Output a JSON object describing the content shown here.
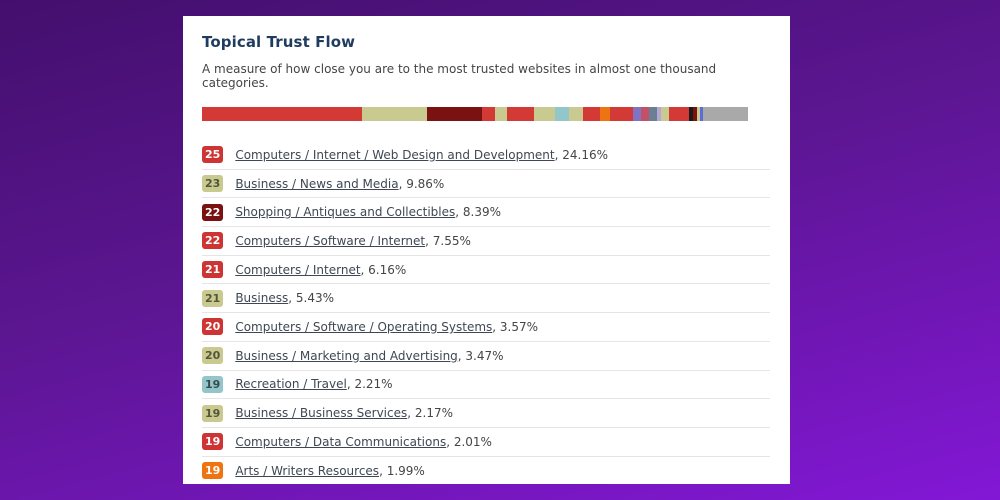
{
  "card": {
    "title": "Topical Trust Flow",
    "subtitle": "A measure of how close you are to the most trusted websites in almost one thousand categories."
  },
  "colors": {
    "background_top": "#430f6d",
    "background_bottom": "#8317d6",
    "card_background": "#ffffff",
    "title_text": "#1f3c5f",
    "body_text": "#454545",
    "link_text": "#3e4753",
    "divider": "#e5e5e5",
    "badge_red": "#ce3434",
    "badge_olive": "#c8ca90",
    "badge_maroon": "#7a1212",
    "badge_teal": "#93c6ca",
    "badge_orange": "#ee7411",
    "bar_other_gray": "#a9a9a9"
  },
  "chart_data": {
    "type": "bar",
    "variant": "single-stacked-horizontal-bar",
    "title": "Topical Trust Flow category distribution",
    "unit": "%",
    "legend": "none",
    "categories": [
      "Computers / Internet / Web Design and Development",
      "Business / News and Media",
      "Shopping / Antiques and Collectibles",
      "Computers / Software / Internet",
      "Computers / Internet",
      "Business",
      "Computers / Software / Operating Systems",
      "Business / Marketing and Advertising",
      "Recreation / Travel",
      "Business / Business Services",
      "Computers / Data Communications",
      "Arts / Writers Resources"
    ],
    "values": [
      24.16,
      9.86,
      8.39,
      7.55,
      6.16,
      5.43,
      3.57,
      3.47,
      2.21,
      2.17,
      2.01,
      1.99
    ],
    "segments": [
      {
        "color": "#d43a35",
        "width_pct": 29.3
      },
      {
        "color": "#c8ca90",
        "width_pct": 11.9
      },
      {
        "color": "#7a1212",
        "width_pct": 10.1
      },
      {
        "color": "#d43a35",
        "width_pct": 2.4
      },
      {
        "color": "#c8ca90",
        "width_pct": 2.2
      },
      {
        "color": "#d43a35",
        "width_pct": 4.9
      },
      {
        "color": "#c8ca90",
        "width_pct": 3.8
      },
      {
        "color": "#93c6ca",
        "width_pct": 2.6
      },
      {
        "color": "#c8ca90",
        "width_pct": 2.6
      },
      {
        "color": "#d43a35",
        "width_pct": 3.1
      },
      {
        "color": "#ee7411",
        "width_pct": 1.8
      },
      {
        "color": "#d43a35",
        "width_pct": 4.2
      },
      {
        "color": "#8272c4",
        "width_pct": 1.5
      },
      {
        "color": "#c15069",
        "width_pct": 1.5
      },
      {
        "color": "#6a7f93",
        "width_pct": 1.5
      },
      {
        "color": "#b5a6d6",
        "width_pct": 0.7
      },
      {
        "color": "#c8ca90",
        "width_pct": 1.5
      },
      {
        "color": "#d43a35",
        "width_pct": 3.7
      },
      {
        "color": "#1a1a1a",
        "width_pct": 0.6
      },
      {
        "color": "#7a1212",
        "width_pct": 0.7
      },
      {
        "color": "#c8ca90",
        "width_pct": 0.6
      },
      {
        "color": "#5b6ed1",
        "width_pct": 0.6
      },
      {
        "color": "#a9a9a9",
        "width_pct": 8.2
      }
    ]
  },
  "topics": [
    {
      "score": "25",
      "badge_color": "#ce3434",
      "badge_text_color": "#ffffff",
      "label": "Computers / Internet / Web Design and Development",
      "percent": "24.16%"
    },
    {
      "score": "23",
      "badge_color": "#c8ca90",
      "badge_text_color": "#55553a",
      "label": "Business / News and Media",
      "percent": "9.86%"
    },
    {
      "score": "22",
      "badge_color": "#7a1212",
      "badge_text_color": "#ffffff",
      "label": "Shopping / Antiques and Collectibles",
      "percent": "8.39%"
    },
    {
      "score": "22",
      "badge_color": "#ce3434",
      "badge_text_color": "#ffffff",
      "label": "Computers / Software / Internet",
      "percent": "7.55%"
    },
    {
      "score": "21",
      "badge_color": "#ce3434",
      "badge_text_color": "#ffffff",
      "label": "Computers / Internet",
      "percent": "6.16%"
    },
    {
      "score": "21",
      "badge_color": "#c8ca90",
      "badge_text_color": "#55553a",
      "label": "Business",
      "percent": "5.43%"
    },
    {
      "score": "20",
      "badge_color": "#ce3434",
      "badge_text_color": "#ffffff",
      "label": "Computers / Software / Operating Systems",
      "percent": "3.57%"
    },
    {
      "score": "20",
      "badge_color": "#c8ca90",
      "badge_text_color": "#55553a",
      "label": "Business / Marketing and Advertising",
      "percent": "3.47%"
    },
    {
      "score": "19",
      "badge_color": "#93c6ca",
      "badge_text_color": "#3d4a4c",
      "label": "Recreation / Travel",
      "percent": "2.21%"
    },
    {
      "score": "19",
      "badge_color": "#c8ca90",
      "badge_text_color": "#55553a",
      "label": "Business / Business Services",
      "percent": "2.17%"
    },
    {
      "score": "19",
      "badge_color": "#ce3434",
      "badge_text_color": "#ffffff",
      "label": "Computers / Data Communications",
      "percent": "2.01%"
    },
    {
      "score": "19",
      "badge_color": "#ee7411",
      "badge_text_color": "#ffffff",
      "label": "Arts / Writers Resources",
      "percent": "1.99%"
    }
  ]
}
